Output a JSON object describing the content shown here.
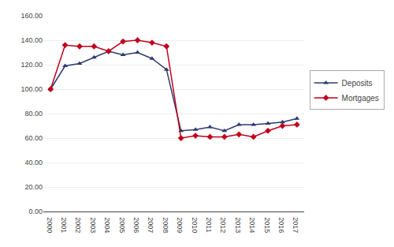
{
  "chart_data": {
    "type": "line",
    "x": [
      2000,
      2001,
      2002,
      2003,
      2004,
      2005,
      2006,
      2007,
      2008,
      2009,
      2010,
      2011,
      2012,
      2013,
      2014,
      2015,
      2016,
      2017
    ],
    "series": [
      {
        "name": "Deposits",
        "color": "#2e3b6e",
        "marker": "triangle-up",
        "values": [
          100,
          119,
          121,
          126,
          131,
          128,
          130,
          125,
          116,
          66,
          67,
          69,
          66,
          71,
          71,
          72,
          73,
          76
        ]
      },
      {
        "name": "Mortgages",
        "color": "#c0001a",
        "marker": "diamond",
        "values": [
          100,
          136,
          135,
          135,
          131,
          139,
          140,
          138,
          135,
          60,
          62,
          61,
          61,
          63,
          61,
          66,
          70,
          71
        ]
      }
    ],
    "xlim": [
      1999.5,
      2017.5
    ],
    "xticks": [
      2000,
      2001,
      2002,
      2003,
      2004,
      2005,
      2006,
      2007,
      2008,
      2009,
      2010,
      2011,
      2012,
      2013,
      2014,
      2015,
      2016,
      2017
    ],
    "ylim": [
      0,
      160
    ],
    "yticks": [
      {
        "value": 0,
        "label": "0.00"
      },
      {
        "value": 20,
        "label": "20.00"
      },
      {
        "value": 40,
        "label": "40.00"
      },
      {
        "value": 60,
        "label": "60.00"
      },
      {
        "value": 80,
        "label": "80.00"
      },
      {
        "value": 100,
        "label": "100.00"
      },
      {
        "value": 120,
        "label": "120.00"
      },
      {
        "value": 140,
        "label": "140.00"
      },
      {
        "value": 160,
        "label": "160.00"
      }
    ],
    "grid": "y",
    "legend": "right"
  }
}
